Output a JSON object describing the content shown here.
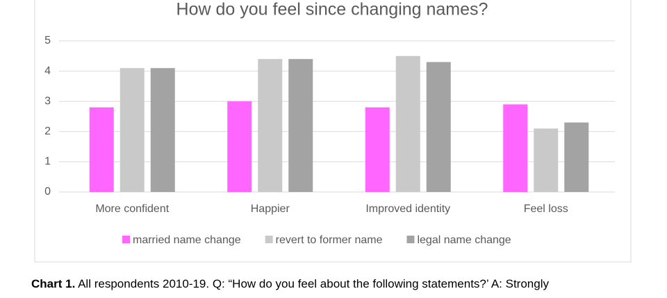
{
  "chart_data": {
    "type": "bar",
    "title": "How do you feel since changing names?",
    "categories": [
      "More confident",
      "Happier",
      "Improved identity",
      "Feel loss"
    ],
    "series": [
      {
        "name": "married name change",
        "color": "#ff66ff",
        "values": [
          2.8,
          3.0,
          2.8,
          2.9
        ]
      },
      {
        "name": "revert to former name",
        "color": "#c9c9c9",
        "values": [
          4.1,
          4.4,
          4.5,
          2.1
        ]
      },
      {
        "name": "legal name change",
        "color": "#a3a3a3",
        "values": [
          4.1,
          4.4,
          4.3,
          2.3
        ]
      }
    ],
    "ylim": [
      0,
      5
    ],
    "yticks": [
      0,
      1,
      2,
      3,
      4,
      5
    ],
    "grid": true,
    "legend": "bottom"
  },
  "caption": {
    "label": "Chart 1.",
    "text": "All respondents 2010-19. Q: “How do you feel about the following statements?’ A: Strongly"
  }
}
